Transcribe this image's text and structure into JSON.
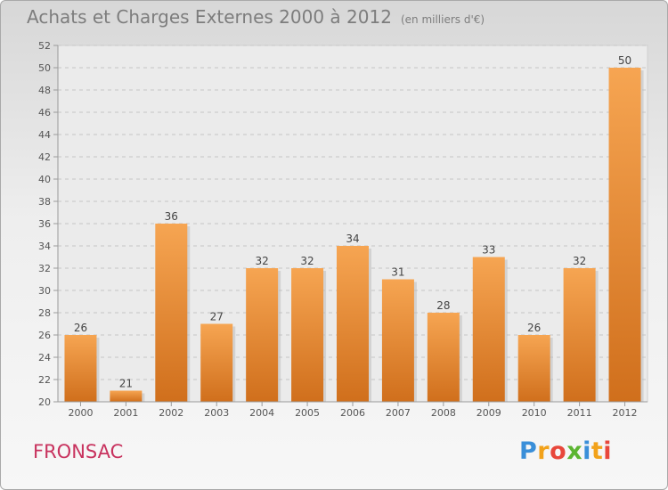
{
  "header": {
    "title": "Achats et Charges Externes 2000 à 2012",
    "subtitle": "(en milliers d'€)"
  },
  "footer": {
    "commune": "FRONSAC",
    "logo_letters": [
      "P",
      "r",
      "o",
      "x",
      "i",
      "t",
      "i"
    ]
  },
  "chart_data": {
    "type": "bar",
    "categories": [
      "2000",
      "2001",
      "2002",
      "2003",
      "2004",
      "2005",
      "2006",
      "2007",
      "2008",
      "2009",
      "2010",
      "2011",
      "2012"
    ],
    "values": [
      26,
      21,
      36,
      27,
      32,
      32,
      34,
      31,
      28,
      33,
      26,
      32,
      50
    ],
    "ylim": [
      20,
      52
    ],
    "yticks": [
      20,
      22,
      24,
      26,
      28,
      30,
      32,
      34,
      36,
      38,
      40,
      42,
      44,
      46,
      48,
      50,
      52
    ],
    "grid": true,
    "bar_color_light": "#f6a552",
    "bar_color_dark": "#d06f1c"
  }
}
